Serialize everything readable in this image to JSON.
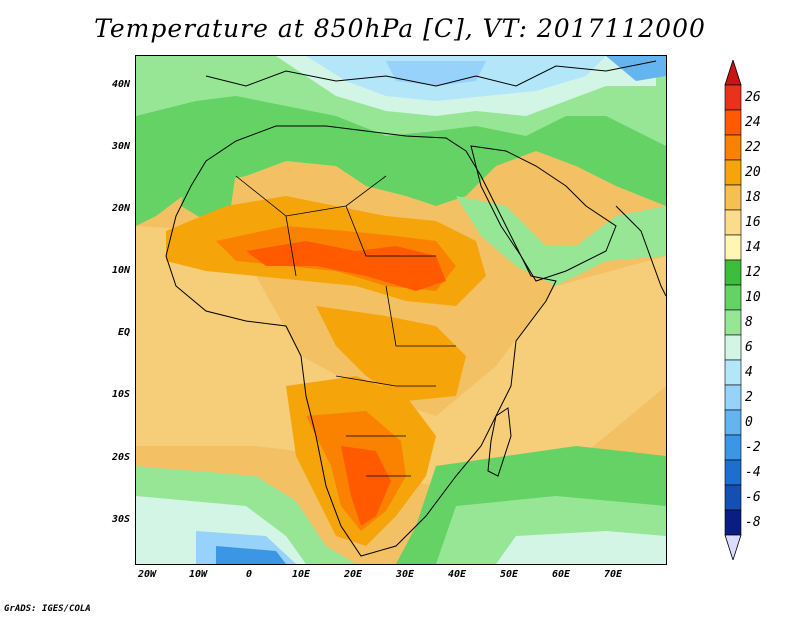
{
  "title": "Temperature at 850hPa [C], VT: 2017112000",
  "credit": "GrADS: IGES/COLA",
  "lat_labels": [
    "40N",
    "30N",
    "20N",
    "10N",
    "EQ",
    "10S",
    "20S",
    "30S"
  ],
  "lon_labels": [
    "20W",
    "10W",
    "0",
    "10E",
    "20E",
    "30E",
    "40E",
    "50E",
    "60E",
    "70E"
  ],
  "colorbar": {
    "labels": [
      "26",
      "24",
      "22",
      "20",
      "18",
      "16",
      "14",
      "12",
      "10",
      "8",
      "6",
      "4",
      "2",
      "0",
      "-2",
      "-4",
      "-6",
      "-8"
    ],
    "colors": [
      "#e8321e",
      "#ff5a00",
      "#fa8200",
      "#f5a50a",
      "#f5c050",
      "#fadc8c",
      "#fff5b4",
      "#3cbe3c",
      "#64d264",
      "#96e696",
      "#d2f5e6",
      "#b4e6fa",
      "#96d2fa",
      "#64b4f0",
      "#3c96e6",
      "#1e6ed2",
      "#1450b4",
      "#0a1e82"
    ],
    "top_arrow_color": "#c81414",
    "bottom_arrow_color": "#dcdcff"
  }
}
